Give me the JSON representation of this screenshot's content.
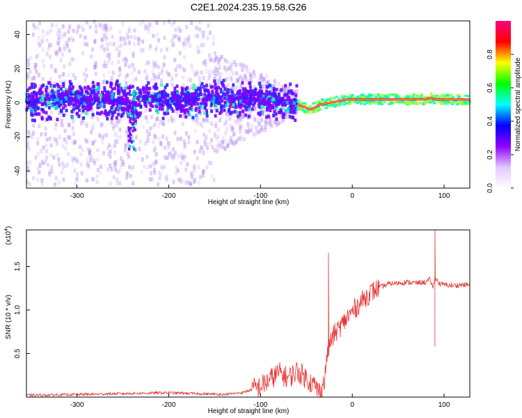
{
  "title": "C2E1.2024.235.19.58.G26",
  "chart_data": [
    {
      "type": "heatmap",
      "xlabel": "Height of straight line (km)",
      "ylabel": "Frequency (Hz)",
      "xlim": [
        -355,
        128
      ],
      "ylim": [
        -50,
        48
      ],
      "xticks": [
        -300,
        -200,
        -100,
        0,
        100
      ],
      "xtick_labels": [
        "-300",
        "-200",
        "-100",
        "0",
        "100"
      ],
      "yticks": [
        -40,
        -20,
        0,
        20,
        40
      ],
      "ytick_labels": [
        "-40",
        "-20",
        "0",
        "20",
        "40"
      ],
      "colorbar": {
        "label": "Normalized spectral amplitude",
        "range": [
          0,
          1
        ],
        "ticks": [
          0.0,
          0.2,
          0.4,
          0.6,
          0.8
        ],
        "tick_labels": [
          "0.0",
          "0.2",
          "0.4",
          "0.6",
          "0.8"
        ],
        "colormap": [
          "#ffffff",
          "#e0c8ff",
          "#9000ff",
          "#0000ff",
          "#00ffff",
          "#00ff00",
          "#ffff00",
          "#ff0000",
          "#ff0080"
        ]
      },
      "ridge": {
        "x": [
          -355,
          -300,
          -250,
          -240,
          -230,
          -200,
          -150,
          -100,
          -80,
          -65,
          -55,
          -45,
          -35,
          -25,
          -15,
          -5,
          0,
          20,
          50,
          80,
          85,
          90,
          100,
          128
        ],
        "y": [
          1,
          2,
          1,
          -3,
          3,
          1,
          3,
          2,
          1,
          0,
          -2,
          -4,
          -1,
          0,
          1,
          2,
          2,
          2,
          2,
          2,
          3,
          2,
          2,
          2
        ]
      },
      "scatter_x_range": [
        -355,
        -60
      ],
      "high_amplitude_x_range": [
        -60,
        128
      ]
    },
    {
      "type": "line",
      "xlabel": "Height of straight line (km)",
      "ylabel": "SNR (10 * v/v)",
      "y_exponent_label": "(x10",
      "y_exponent": "4",
      "xlim": [
        -355,
        128
      ],
      "ylim": [
        0,
        1.92
      ],
      "xticks": [
        -300,
        -200,
        -100,
        0,
        100
      ],
      "xtick_labels": [
        "-300",
        "-200",
        "-100",
        "0",
        "100"
      ],
      "yticks": [
        0.5,
        1.0,
        1.5
      ],
      "ytick_labels": [
        "0.5",
        "1.0",
        "1.5"
      ],
      "series": [
        {
          "color": "#e8302e",
          "x": [
            -355,
            -300,
            -250,
            -200,
            -170,
            -140,
            -120,
            -100,
            -90,
            -80,
            -70,
            -60,
            -50,
            -40,
            -35,
            -30,
            -28,
            -25,
            -20,
            -15,
            -10,
            -5,
            0,
            10,
            20,
            30,
            40,
            50,
            60,
            70,
            80,
            85,
            88,
            90,
            95,
            100,
            110,
            120,
            128
          ],
          "y": [
            0.02,
            0.03,
            0.04,
            0.05,
            0.04,
            0.03,
            0.05,
            0.12,
            0.2,
            0.28,
            0.22,
            0.3,
            0.22,
            0.12,
            0.05,
            0.2,
            0.45,
            0.6,
            0.72,
            0.78,
            0.85,
            0.92,
            0.98,
            1.1,
            1.2,
            1.26,
            1.3,
            1.31,
            1.32,
            1.31,
            1.32,
            1.35,
            1.25,
            1.38,
            1.3,
            1.29,
            1.28,
            1.29,
            1.29
          ]
        }
      ],
      "spikes": [
        {
          "x": -26,
          "y": 1.66
        },
        {
          "x": 90,
          "y": 1.92
        },
        {
          "x": 90,
          "y": 0.58
        }
      ]
    }
  ]
}
